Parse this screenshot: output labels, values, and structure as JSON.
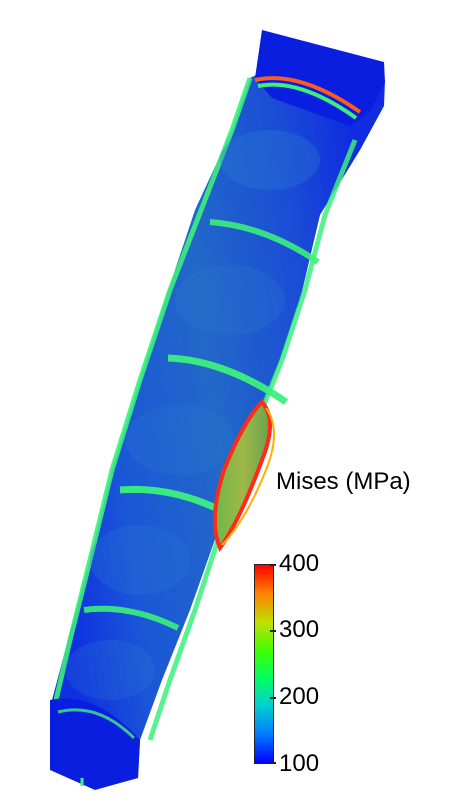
{
  "legend": {
    "title": "Mises (MPa)",
    "ticks": [
      "400",
      "300",
      "200",
      "100"
    ],
    "min": 100,
    "max": 400,
    "colormap": [
      "#0000ff",
      "#0078ff",
      "#00d0d0",
      "#00ff60",
      "#40ff00",
      "#c0e000",
      "#ff8000",
      "#ff0000"
    ]
  },
  "colors": {
    "base_blue": "#1438d8",
    "end_cap_blue": "#0a1ee0",
    "ring_green": "#3cf07c",
    "edge_red": "#ff2a1a",
    "background": "#ffffff"
  }
}
